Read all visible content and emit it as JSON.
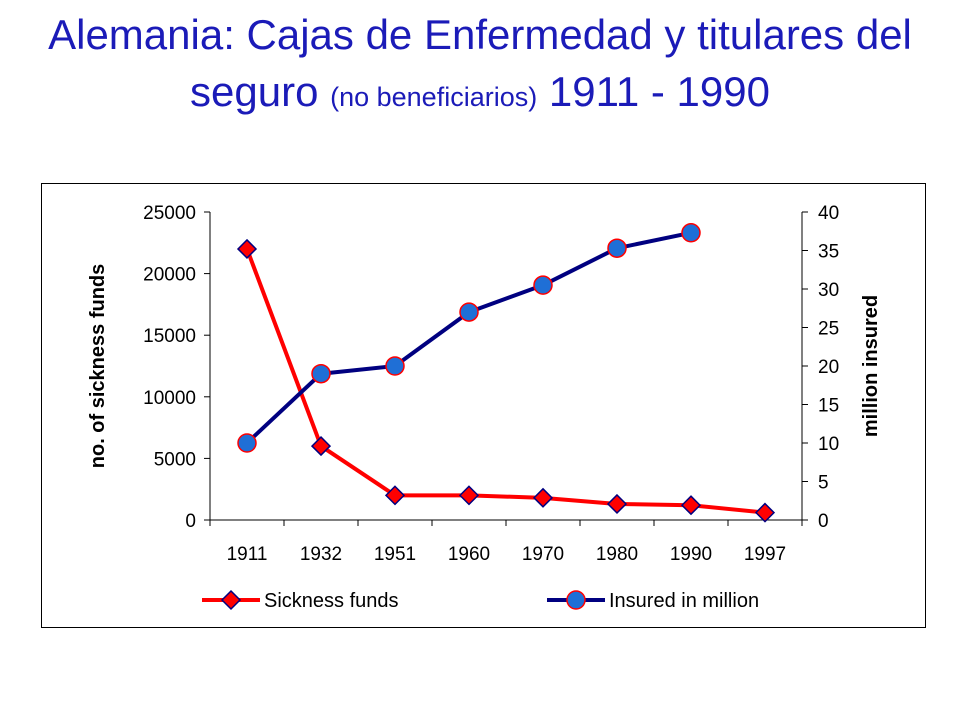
{
  "title": {
    "main": "Alemania: Cajas de Enfermedad y titulares del seguro",
    "sub": "(no beneficiarios)",
    "years": "1911 - 1990"
  },
  "chart_data": {
    "type": "line",
    "categories": [
      "1911",
      "1932",
      "1951",
      "1960",
      "1970",
      "1980",
      "1990",
      "1997"
    ],
    "ylabel_left": "no. of sickness funds",
    "ylabel_right": "million insured",
    "xlabel": "",
    "ylim_left": [
      0,
      25000
    ],
    "ylim_right": [
      0,
      40
    ],
    "yticks_left": [
      "0",
      "5000",
      "10000",
      "15000",
      "20000",
      "25000"
    ],
    "yticks_right": [
      "0",
      "5",
      "10",
      "15",
      "20",
      "25",
      "30",
      "35",
      "40"
    ],
    "grid": false,
    "legend_position": "bottom",
    "series": [
      {
        "name": "Sickness funds",
        "axis": "left",
        "marker": "diamond",
        "color": "#ff0000",
        "marker_fill": "#ff0000",
        "marker_edge": "#000080",
        "values": [
          22000,
          6000,
          2000,
          2000,
          1800,
          1300,
          1200,
          600
        ]
      },
      {
        "name": "Insured in million",
        "axis": "right",
        "marker": "circle",
        "color": "#000080",
        "marker_fill": "#1f6fd6",
        "marker_edge": "#ff0000",
        "values": [
          10,
          19,
          20,
          27,
          30.5,
          35.3,
          37.3,
          null
        ]
      }
    ]
  }
}
